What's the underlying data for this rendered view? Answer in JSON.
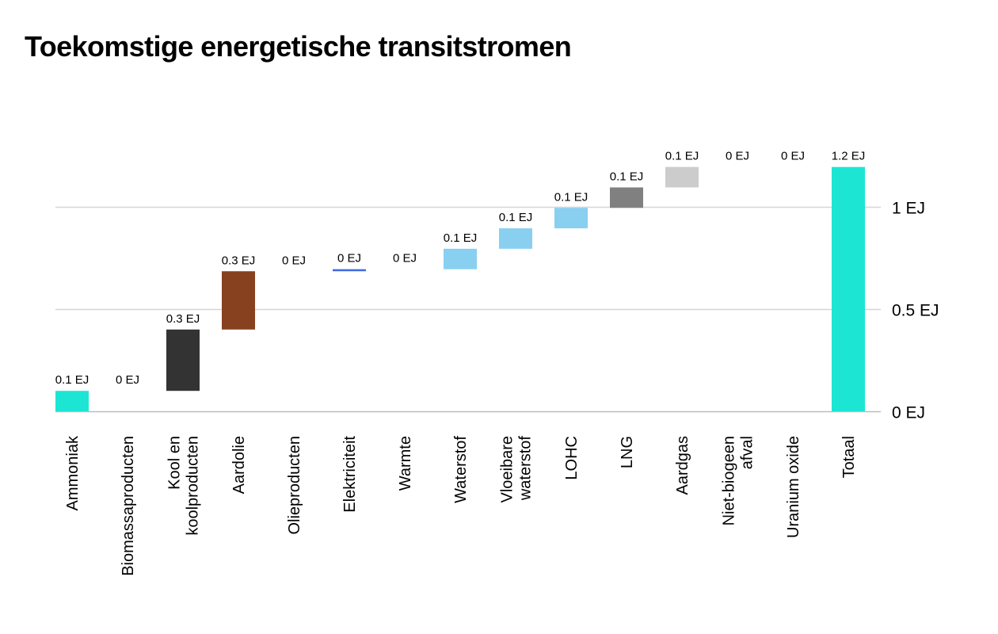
{
  "title": "Toekomstige energetische transitstromen",
  "chart_data": {
    "type": "waterfall",
    "title": "Toekomstige energetische transitstromen",
    "xlabel": "",
    "ylabel": "",
    "unit": "EJ",
    "ylim": [
      0,
      1.2
    ],
    "grid": true,
    "yticks": [
      {
        "value": 0,
        "label": "0 EJ"
      },
      {
        "value": 0.5,
        "label": "0.5 EJ"
      },
      {
        "value": 1,
        "label": "1 EJ"
      }
    ],
    "bars": [
      {
        "category": [
          "Ammoniak"
        ],
        "start": 0.0,
        "end": 0.1,
        "label": "0.1 EJ",
        "color": "#1de5d3"
      },
      {
        "category": [
          "Biomassaproducten"
        ],
        "start": 0.1,
        "end": 0.1,
        "label": "0 EJ",
        "color": "#b0b0b0"
      },
      {
        "category": [
          "Kool en",
          "koolproducten"
        ],
        "start": 0.1,
        "end": 0.4,
        "label": "0.3 EJ",
        "color": "#333333"
      },
      {
        "category": [
          "Aardolie"
        ],
        "start": 0.4,
        "end": 0.685,
        "label": "0.3 EJ",
        "color": "#87411f"
      },
      {
        "category": [
          "Olieproducten"
        ],
        "start": 0.685,
        "end": 0.685,
        "label": "0 EJ",
        "color": "#b0b0b0"
      },
      {
        "category": [
          "Elektriciteit"
        ],
        "start": 0.685,
        "end": 0.695,
        "label": "0 EJ",
        "color": "#4169e1"
      },
      {
        "category": [
          "Warmte"
        ],
        "start": 0.695,
        "end": 0.695,
        "label": "0 EJ",
        "color": "#b0b0b0"
      },
      {
        "category": [
          "Waterstof"
        ],
        "start": 0.695,
        "end": 0.795,
        "label": "0.1 EJ",
        "color": "#89cff0"
      },
      {
        "category": [
          "Vloeibare",
          "waterstof"
        ],
        "start": 0.795,
        "end": 0.895,
        "label": "0.1 EJ",
        "color": "#89cff0"
      },
      {
        "category": [
          "LOHC"
        ],
        "start": 0.895,
        "end": 0.995,
        "label": "0.1 EJ",
        "color": "#89cff0"
      },
      {
        "category": [
          "LNG"
        ],
        "start": 0.995,
        "end": 1.095,
        "label": "0.1 EJ",
        "color": "#808080"
      },
      {
        "category": [
          "Aardgas"
        ],
        "start": 1.095,
        "end": 1.195,
        "label": "0.1 EJ",
        "color": "#cccccc"
      },
      {
        "category": [
          "Niet-biogeen",
          "afval"
        ],
        "start": 1.195,
        "end": 1.195,
        "label": "0 EJ",
        "color": "#b0b0b0"
      },
      {
        "category": [
          "Uranium oxide"
        ],
        "start": 1.195,
        "end": 1.195,
        "label": "0 EJ",
        "color": "#b0b0b0"
      },
      {
        "category": [
          "Totaal"
        ],
        "start": 0.0,
        "end": 1.195,
        "label": "1.2 EJ",
        "color": "#1de5d3"
      }
    ]
  }
}
